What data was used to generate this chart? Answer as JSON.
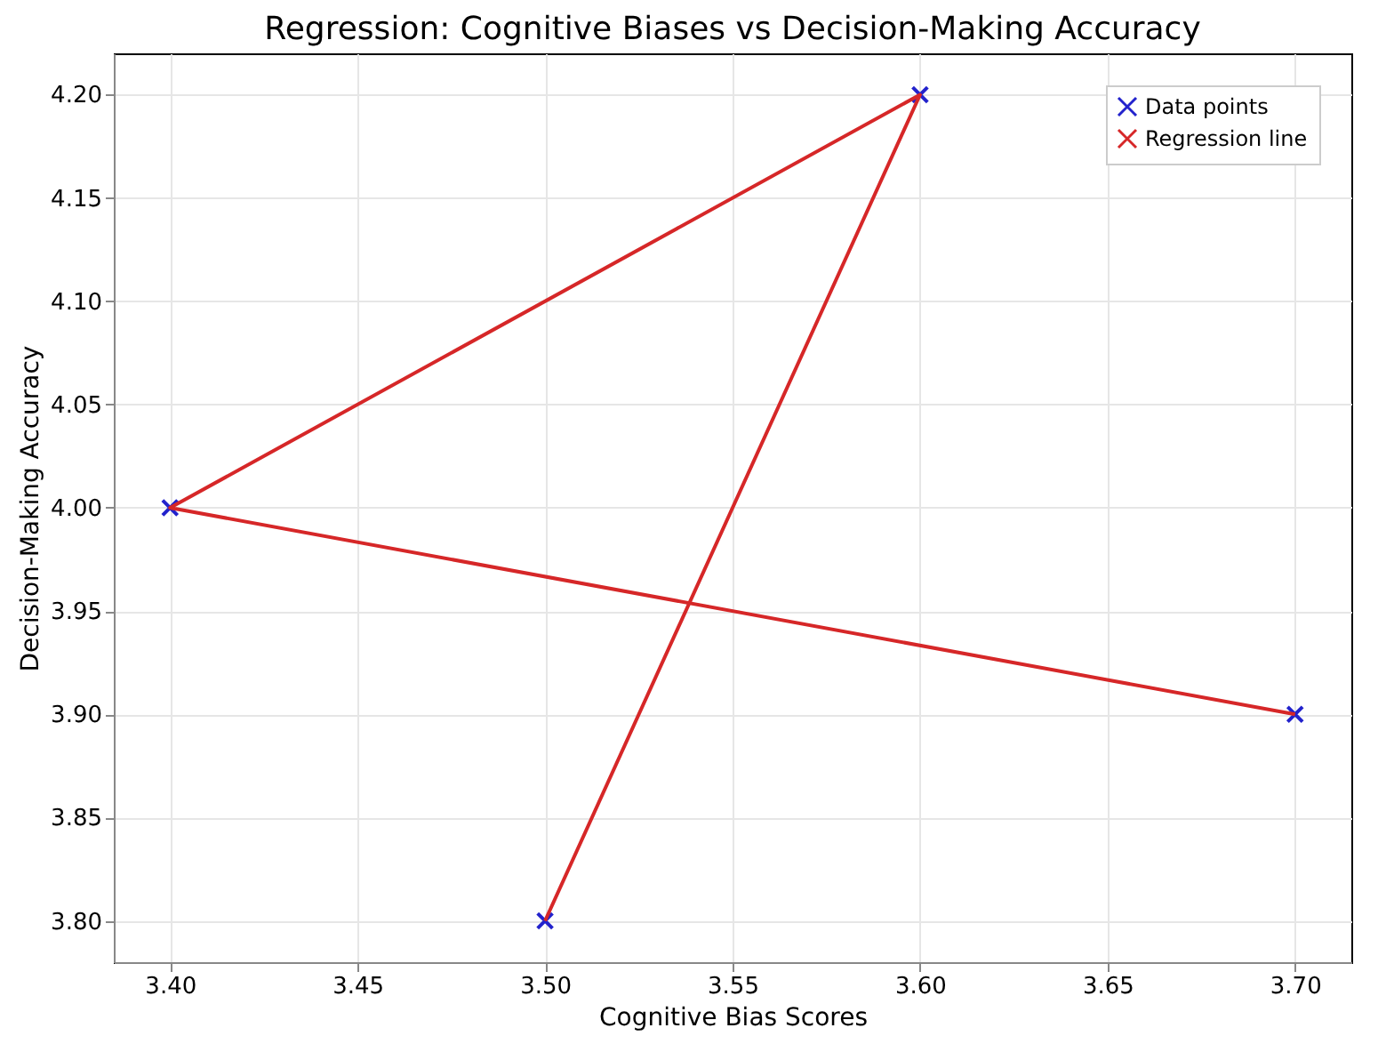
{
  "chart_data": {
    "type": "scatter",
    "title": "Regression: Cognitive Biases vs Decision-Making Accuracy",
    "xlabel": "Cognitive Bias Scores",
    "ylabel": "Decision-Making Accuracy",
    "series": [
      {
        "name": "Data points",
        "color": "#2222cc",
        "marker": "cross",
        "x": [
          3.5,
          3.6,
          3.4,
          3.7
        ],
        "values": [
          3.8,
          4.2,
          4.0,
          3.9
        ]
      },
      {
        "name": "Regression line",
        "type": "line",
        "color": "#d62728",
        "marker": "none",
        "line_style": "solid",
        "x": [
          3.5,
          3.6,
          3.4,
          3.7
        ],
        "values": [
          3.8,
          4.2,
          4.0,
          3.9
        ]
      }
    ],
    "xlim": [
      3.385,
      3.715
    ],
    "xticks": [
      {
        "value": 3.4,
        "label": "3.40"
      },
      3.45,
      {
        "value": 3.5,
        "label": "3.50"
      },
      3.55,
      {
        "value": 3.6,
        "label": "3.60"
      },
      3.65,
      {
        "value": 3.7,
        "label": "3.70"
      }
    ],
    "ylim": [
      3.78,
      4.22
    ],
    "yticks": [
      {
        "value": 3.8,
        "label": "3.80"
      },
      3.85,
      {
        "value": 3.9,
        "label": "3.90"
      },
      3.95,
      {
        "value": 4.0,
        "label": "4.00"
      },
      4.05,
      {
        "value": 4.1,
        "label": "4.10"
      },
      4.15,
      {
        "value": 4.2,
        "label": "4.20"
      }
    ],
    "grid": true,
    "legend": "top right"
  }
}
